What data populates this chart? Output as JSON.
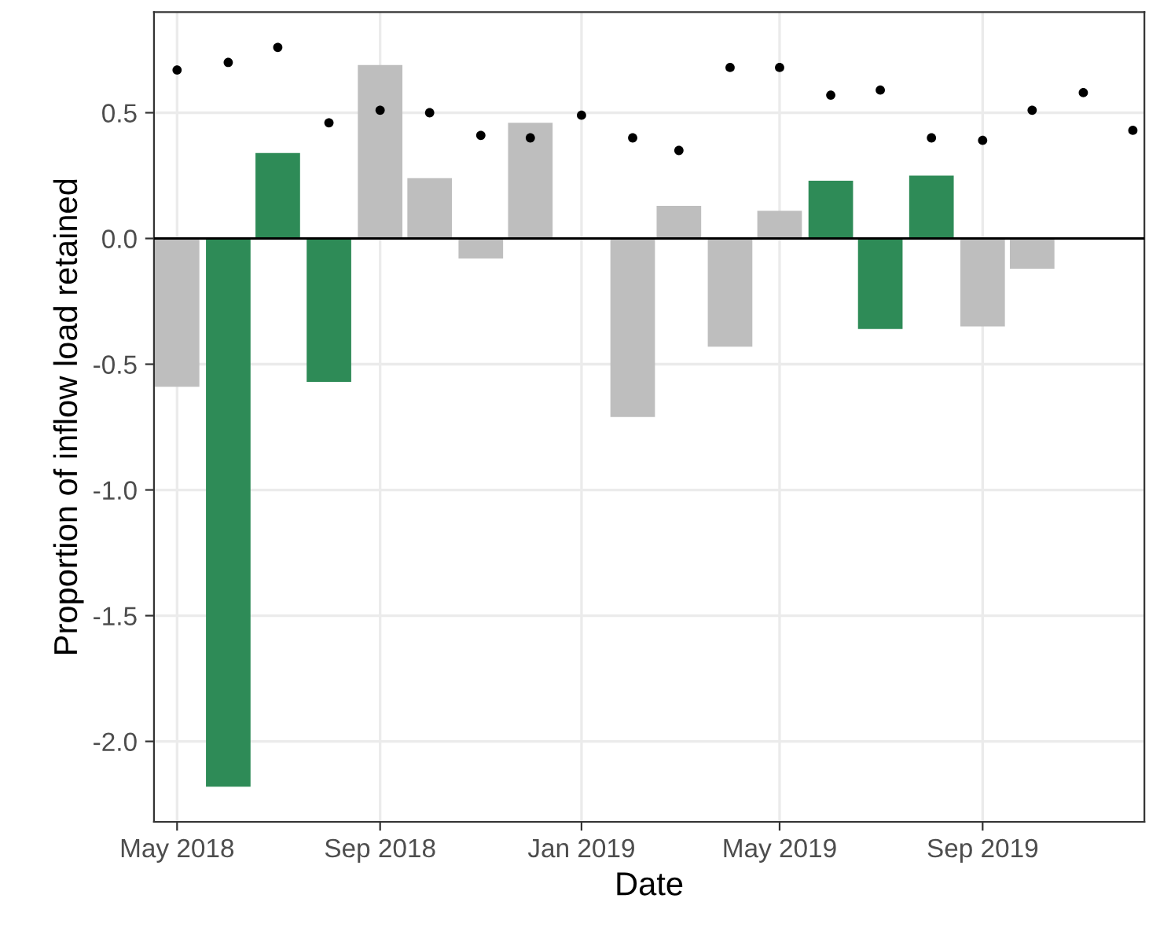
{
  "chart_data": {
    "type": "bar",
    "xlabel": "Date",
    "ylabel": "Proportion of inflow load retained",
    "x": [
      "2018-05",
      "2018-06",
      "2018-07",
      "2018-08",
      "2018-09",
      "2018-10",
      "2018-11",
      "2018-12",
      "2019-01",
      "2019-02",
      "2019-03",
      "2019-04",
      "2019-05",
      "2019-06",
      "2019-07",
      "2019-08",
      "2019-09",
      "2019-10",
      "2019-11",
      "2019-12"
    ],
    "series": [
      {
        "values": [
          -0.59,
          -2.18,
          0.34,
          -0.57,
          0.69,
          0.24,
          -0.08,
          0.46,
          null,
          -0.71,
          0.13,
          -0.43,
          0.11,
          0.23,
          -0.36,
          0.25,
          -0.35,
          -0.12,
          null,
          null
        ],
        "colors": [
          "#bebebe",
          "#2e8b57",
          "#2e8b57",
          "#2e8b57",
          "#bebebe",
          "#bebebe",
          "#bebebe",
          "#bebebe",
          "#bebebe",
          "#bebebe",
          "#bebebe",
          "#bebebe",
          "#bebebe",
          "#2e8b57",
          "#2e8b57",
          "#2e8b57",
          "#bebebe",
          "#bebebe",
          "#bebebe",
          "#bebebe"
        ]
      },
      {
        "type": "scatter",
        "color": "#000000",
        "values": [
          0.67,
          0.7,
          0.76,
          0.46,
          0.51,
          0.5,
          0.41,
          0.4,
          0.49,
          0.4,
          0.35,
          0.68,
          0.68,
          0.57,
          0.59,
          0.4,
          0.39,
          0.51,
          0.58,
          0.43
        ]
      }
    ],
    "xlim": [
      "2018-04-17",
      "2019-12-08"
    ],
    "xticks": [
      {
        "value": "2018-05",
        "label": "May 2018"
      },
      {
        "value": "2018-09",
        "label": "Sep 2018"
      },
      {
        "value": "2019-01",
        "label": "Jan 2019"
      },
      {
        "value": "2019-05",
        "label": "May 2019"
      },
      {
        "value": "2019-09",
        "label": "Sep 2019"
      }
    ],
    "ylim": [
      -2.32,
      0.9
    ],
    "yticks": [
      {
        "value": -2,
        "label": "-2.0"
      },
      {
        "value": -1.5,
        "label": "-1.5"
      },
      {
        "value": -1,
        "label": "-1.0"
      },
      {
        "value": -0.5,
        "label": "-0.5"
      },
      {
        "value": 0,
        "label": "0.0"
      },
      {
        "value": 0.5,
        "label": "0.5"
      }
    ],
    "ref_lines": [
      {
        "axis": "y",
        "value": 0,
        "color": "#000000"
      }
    ],
    "grid": true,
    "legend": false,
    "marker": "circle"
  }
}
